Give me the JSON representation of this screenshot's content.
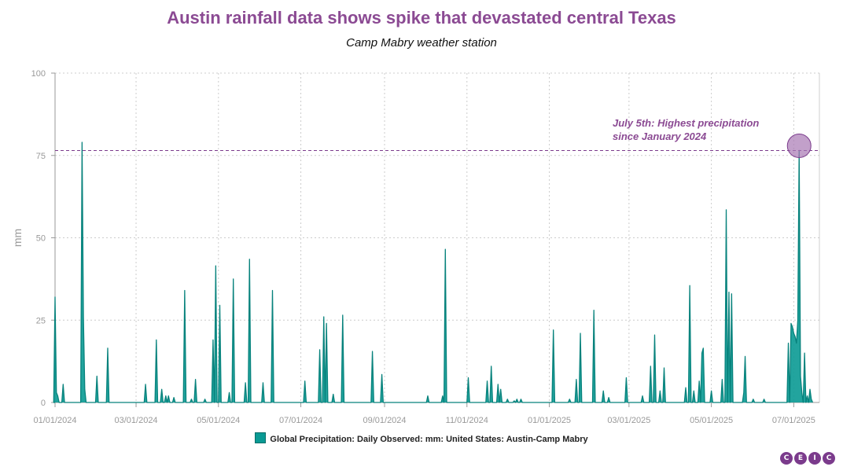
{
  "chart_data": {
    "type": "area",
    "title": "Austin rainfall data shows spike that devastated central Texas",
    "subtitle": "Camp Mabry weather station",
    "xlabel": "",
    "ylabel": "mm",
    "ylim": [
      0,
      100
    ],
    "yticks": [
      0,
      25,
      50,
      75,
      100
    ],
    "xlim": [
      "2024-01-01",
      "2025-07-20"
    ],
    "xticks": [
      "01/01/2024",
      "03/01/2024",
      "05/01/2024",
      "07/01/2024",
      "09/01/2024",
      "11/01/2024",
      "01/01/2025",
      "03/01/2025",
      "05/01/2025",
      "07/01/2025"
    ],
    "grid": true,
    "series": [
      {
        "name": "Global Precipitation: Daily Observed: mm: United States: Austin-Camp Mabry",
        "color": "#0a9a94",
        "points": [
          [
            "2024-01-01",
            32
          ],
          [
            "2024-01-02",
            3
          ],
          [
            "2024-01-03",
            2
          ],
          [
            "2024-01-07",
            5.5
          ],
          [
            "2024-01-21",
            79
          ],
          [
            "2024-01-22",
            26
          ],
          [
            "2024-01-23",
            4
          ],
          [
            "2024-02-01",
            8
          ],
          [
            "2024-02-09",
            16.5
          ],
          [
            "2024-03-08",
            5.5
          ],
          [
            "2024-03-16",
            19
          ],
          [
            "2024-03-20",
            4
          ],
          [
            "2024-03-23",
            2
          ],
          [
            "2024-03-25",
            2
          ],
          [
            "2024-03-29",
            1.5
          ],
          [
            "2024-04-06",
            34
          ],
          [
            "2024-04-11",
            1
          ],
          [
            "2024-04-14",
            7
          ],
          [
            "2024-04-21",
            1
          ],
          [
            "2024-04-27",
            19
          ],
          [
            "2024-04-29",
            41.5
          ],
          [
            "2024-05-02",
            29.5
          ],
          [
            "2024-05-09",
            3
          ],
          [
            "2024-05-12",
            37.5
          ],
          [
            "2024-05-21",
            6
          ],
          [
            "2024-05-24",
            43.5
          ],
          [
            "2024-06-03",
            6
          ],
          [
            "2024-06-10",
            34
          ],
          [
            "2024-07-04",
            6.5
          ],
          [
            "2024-07-15",
            16
          ],
          [
            "2024-07-18",
            26
          ],
          [
            "2024-07-20",
            24
          ],
          [
            "2024-07-25",
            2.5
          ],
          [
            "2024-08-01",
            26.5
          ],
          [
            "2024-08-23",
            15.5
          ],
          [
            "2024-08-30",
            8.5
          ],
          [
            "2024-10-03",
            2
          ],
          [
            "2024-10-14",
            2
          ],
          [
            "2024-10-16",
            46.5
          ],
          [
            "2024-11-02",
            7.5
          ],
          [
            "2024-11-16",
            6.5
          ],
          [
            "2024-11-19",
            11
          ],
          [
            "2024-11-24",
            5.5
          ],
          [
            "2024-11-26",
            4
          ],
          [
            "2024-12-01",
            1
          ],
          [
            "2024-12-06",
            0.5
          ],
          [
            "2024-12-08",
            1
          ],
          [
            "2024-12-11",
            1
          ],
          [
            "2025-01-04",
            22
          ],
          [
            "2025-01-16",
            1
          ],
          [
            "2025-01-21",
            7
          ],
          [
            "2025-01-24",
            21
          ],
          [
            "2025-02-03",
            28
          ],
          [
            "2025-02-10",
            3.5
          ],
          [
            "2025-02-14",
            1.5
          ],
          [
            "2025-02-27",
            7.5
          ],
          [
            "2025-03-11",
            2
          ],
          [
            "2025-03-17",
            11
          ],
          [
            "2025-03-20",
            20.5
          ],
          [
            "2025-03-24",
            3.5
          ],
          [
            "2025-03-27",
            10.5
          ],
          [
            "2025-04-12",
            4.5
          ],
          [
            "2025-04-15",
            35.5
          ],
          [
            "2025-04-18",
            3.5
          ],
          [
            "2025-04-22",
            6.5
          ],
          [
            "2025-04-24",
            15
          ],
          [
            "2025-04-25",
            16.5
          ],
          [
            "2025-05-01",
            3.5
          ],
          [
            "2025-05-09",
            7
          ],
          [
            "2025-05-12",
            58.5
          ],
          [
            "2025-05-14",
            33.5
          ],
          [
            "2025-05-16",
            33
          ],
          [
            "2025-05-25",
            3
          ],
          [
            "2025-05-26",
            14
          ],
          [
            "2025-06-01",
            1
          ],
          [
            "2025-06-09",
            1
          ],
          [
            "2025-06-27",
            18
          ],
          [
            "2025-06-29",
            24
          ],
          [
            "2025-06-30",
            23
          ],
          [
            "2025-07-01",
            21
          ],
          [
            "2025-07-02",
            20
          ],
          [
            "2025-07-03",
            18
          ],
          [
            "2025-07-04",
            25
          ],
          [
            "2025-07-05",
            76.5
          ],
          [
            "2025-07-06",
            8
          ],
          [
            "2025-07-07",
            3
          ],
          [
            "2025-07-09",
            15
          ],
          [
            "2025-07-11",
            2
          ],
          [
            "2025-07-13",
            4
          ],
          [
            "2025-07-14",
            1
          ]
        ]
      }
    ],
    "reference_line": {
      "y": 76.5,
      "style": "dashed",
      "color": "#7b3b8c"
    },
    "annotation": {
      "x": "2025-07-05",
      "y": 76.5,
      "text_lines": [
        "July 5th: Highest precipitation",
        "since January 2024"
      ],
      "color": "#8b4a93"
    },
    "legend": {
      "position": "bottom-center",
      "label": "Global Precipitation: Daily Observed: mm: United States: Austin-Camp Mabry"
    }
  },
  "brand": {
    "letters": [
      "C",
      "E",
      "I",
      "C"
    ]
  }
}
